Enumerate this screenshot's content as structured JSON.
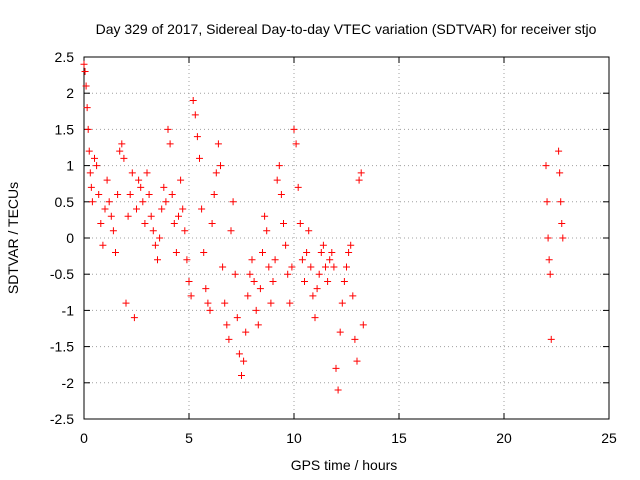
{
  "chart_data": {
    "type": "scatter",
    "title": "Day 329 of 2017, Sidereal Day-to-day VTEC variation (SDTVAR) for receiver stjo",
    "xlabel": "GPS time / hours",
    "ylabel": "SDTVAR / TECUs",
    "xlim": [
      0,
      25
    ],
    "ylim": [
      -2.5,
      2.5
    ],
    "xticks": [
      0,
      5,
      10,
      15,
      20,
      25
    ],
    "yticks": [
      -2.5,
      -2,
      -1.5,
      -1,
      -0.5,
      0,
      0.5,
      1,
      1.5,
      2,
      2.5
    ],
    "xtick_labels": [
      "0",
      "5",
      "10",
      "15",
      "20",
      "25"
    ],
    "ytick_labels": [
      "-2.5",
      "-2",
      "-1.5",
      "-1",
      "-0.5",
      "0",
      "0.5",
      "1",
      "1.5",
      "2",
      "2.5"
    ],
    "grid": true,
    "marker": "+",
    "series": [
      {
        "name": "SDTVAR",
        "color": "#ff0000",
        "x": [
          0.0,
          0.05,
          0.1,
          0.15,
          0.2,
          0.25,
          0.3,
          0.35,
          0.4,
          0.5,
          0.6,
          0.7,
          0.8,
          0.9,
          1.0,
          1.1,
          1.2,
          1.3,
          1.4,
          1.5,
          1.6,
          1.7,
          1.8,
          1.9,
          2.0,
          2.1,
          2.2,
          2.3,
          2.4,
          2.5,
          2.6,
          2.7,
          2.8,
          2.9,
          3.0,
          3.1,
          3.2,
          3.3,
          3.4,
          3.5,
          3.6,
          3.7,
          3.8,
          3.9,
          4.0,
          4.1,
          4.2,
          4.3,
          4.4,
          4.5,
          4.6,
          4.7,
          4.8,
          4.9,
          5.0,
          5.1,
          5.2,
          5.3,
          5.4,
          5.5,
          5.6,
          5.7,
          5.8,
          5.9,
          6.0,
          6.1,
          6.2,
          6.3,
          6.4,
          6.5,
          6.6,
          6.7,
          6.8,
          6.9,
          7.0,
          7.1,
          7.2,
          7.3,
          7.4,
          7.5,
          7.6,
          7.7,
          7.8,
          7.9,
          8.0,
          8.1,
          8.2,
          8.3,
          8.4,
          8.5,
          8.6,
          8.7,
          8.8,
          8.9,
          9.0,
          9.1,
          9.2,
          9.3,
          9.4,
          9.5,
          9.6,
          9.7,
          9.8,
          9.9,
          10.0,
          10.1,
          10.2,
          10.3,
          10.4,
          10.5,
          10.6,
          10.7,
          10.8,
          10.9,
          11.0,
          11.1,
          11.2,
          11.3,
          11.4,
          11.5,
          11.6,
          11.7,
          11.8,
          11.9,
          12.0,
          12.1,
          12.2,
          12.3,
          12.4,
          12.5,
          12.6,
          12.7,
          12.8,
          12.9,
          13.0,
          13.1,
          13.2,
          13.3,
          22.0,
          22.05,
          22.1,
          22.15,
          22.2,
          22.25,
          22.6,
          22.65,
          22.7,
          22.75,
          22.8
        ],
        "y": [
          2.4,
          2.3,
          2.1,
          1.8,
          1.5,
          1.2,
          0.9,
          0.7,
          0.5,
          1.1,
          1.0,
          0.6,
          0.2,
          -0.1,
          0.4,
          0.8,
          0.5,
          0.3,
          0.1,
          -0.2,
          0.6,
          1.2,
          1.3,
          1.1,
          -0.9,
          0.3,
          0.6,
          0.9,
          -1.1,
          0.4,
          0.8,
          0.7,
          0.5,
          0.2,
          0.9,
          0.6,
          0.3,
          0.1,
          -0.1,
          -0.3,
          0.0,
          0.4,
          0.7,
          0.5,
          1.5,
          1.3,
          0.6,
          0.2,
          -0.2,
          0.3,
          0.8,
          0.4,
          0.1,
          -0.3,
          -0.6,
          -0.8,
          1.9,
          1.7,
          1.4,
          1.1,
          0.4,
          -0.2,
          -0.7,
          -0.9,
          -1.0,
          0.2,
          0.6,
          0.9,
          1.3,
          1.0,
          -0.4,
          -0.9,
          -1.2,
          -1.4,
          0.1,
          0.5,
          -0.5,
          -1.1,
          -1.6,
          -1.9,
          -1.7,
          -1.3,
          -0.8,
          -0.5,
          -0.3,
          -0.6,
          -1.0,
          -1.2,
          -0.7,
          -0.2,
          0.3,
          0.1,
          -0.4,
          -0.9,
          -0.6,
          -0.3,
          0.8,
          1.0,
          0.6,
          0.2,
          -0.1,
          -0.5,
          -0.9,
          -0.4,
          1.5,
          1.3,
          0.7,
          0.2,
          -0.3,
          -0.6,
          -0.2,
          0.1,
          -0.4,
          -0.8,
          -1.1,
          -0.7,
          -0.5,
          -0.2,
          -0.1,
          -0.4,
          -0.6,
          -0.3,
          -0.2,
          -0.4,
          -1.8,
          -2.1,
          -1.3,
          -0.9,
          -0.6,
          -0.4,
          -0.2,
          -0.1,
          -0.8,
          -1.4,
          -1.7,
          0.8,
          0.9,
          -1.2,
          1.0,
          0.5,
          0.0,
          -0.3,
          -0.5,
          -1.4,
          1.2,
          0.9,
          0.5,
          0.2,
          0.0
        ]
      }
    ]
  }
}
